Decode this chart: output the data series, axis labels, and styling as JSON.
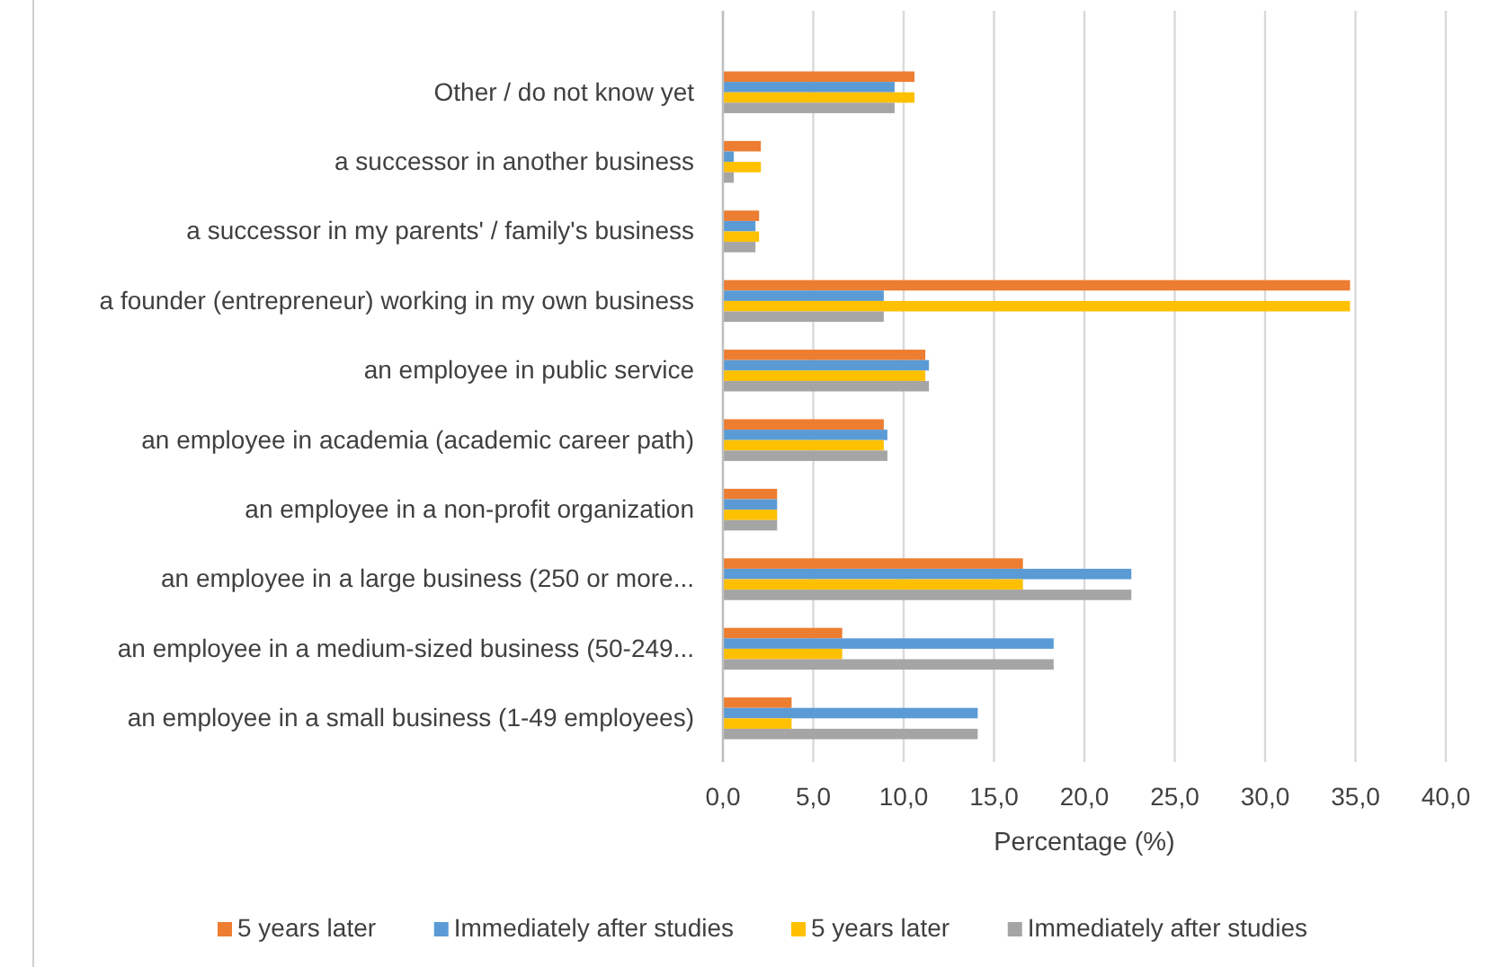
{
  "chart_data": {
    "type": "bar",
    "orientation": "horizontal",
    "categories": [
      "Other / do not know yet",
      "a successor in another business",
      "a successor in my parents' / family's business",
      "a founder (entrepreneur) working in my own business",
      "an employee in public service",
      "an employee in academia (academic career path)",
      "an employee in a non-profit organization",
      "an employee in a large business (250 or more...",
      "an employee in a medium-sized business (50-249...",
      "an employee in a small business (1-49 employees)"
    ],
    "series": [
      {
        "name": "5 years later",
        "color": "#ed7d31",
        "values": [
          10.6,
          2.1,
          2.0,
          34.7,
          11.2,
          8.9,
          3.0,
          16.6,
          6.6,
          3.8
        ]
      },
      {
        "name": "Immediately after studies",
        "color": "#5b9bd5",
        "values": [
          9.5,
          0.6,
          1.8,
          8.9,
          11.4,
          9.1,
          3.0,
          22.6,
          18.3,
          14.1
        ]
      },
      {
        "name": "5 years later",
        "color": "#ffc000",
        "values": [
          10.6,
          2.1,
          2.0,
          34.7,
          11.2,
          8.9,
          3.0,
          16.6,
          6.6,
          3.8
        ]
      },
      {
        "name": "Immediately after studies",
        "color": "#a5a5a5",
        "values": [
          9.5,
          0.6,
          1.8,
          8.9,
          11.4,
          9.1,
          3.0,
          22.6,
          18.3,
          14.1
        ]
      }
    ],
    "xlim": [
      0,
      40
    ],
    "xticks": [
      {
        "value": 0,
        "label": "0,0"
      },
      {
        "value": 5,
        "label": "5,0"
      },
      {
        "value": 10,
        "label": "10,0"
      },
      {
        "value": 15,
        "label": "15,0"
      },
      {
        "value": 20,
        "label": "20,0"
      },
      {
        "value": 25,
        "label": "25,0"
      },
      {
        "value": 30,
        "label": "30,0"
      },
      {
        "value": 35,
        "label": "35,0"
      },
      {
        "value": 40,
        "label": "40,0"
      }
    ],
    "xlabel": "Percentage (%)",
    "grid": "x",
    "legend": "bottom"
  }
}
